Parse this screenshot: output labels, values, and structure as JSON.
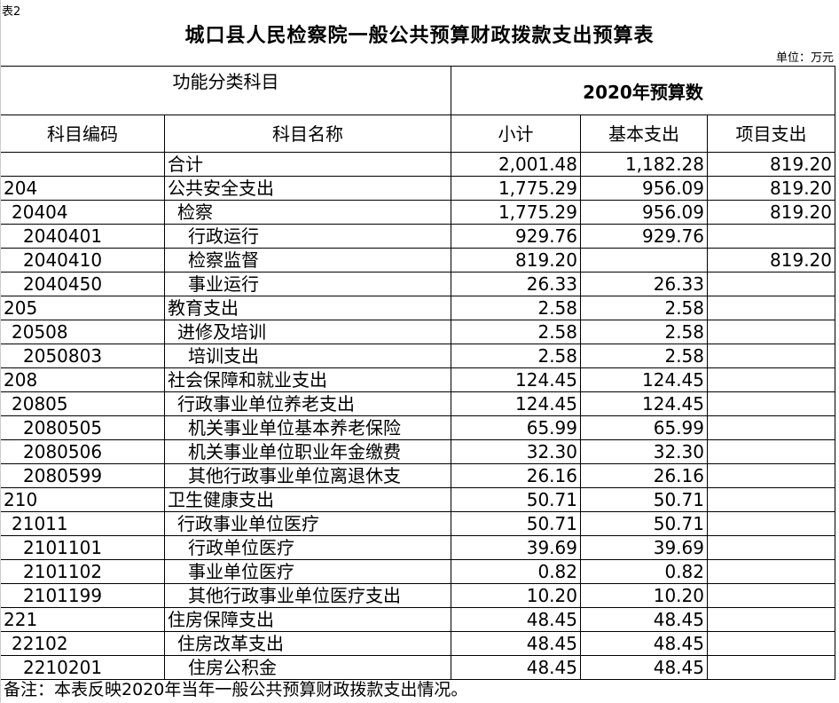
{
  "tag": "表2",
  "title": "城口县人民检察院一般公共预算财政拨款支出预算表",
  "unit": "单位：万元",
  "header": {
    "group_left": "功能分类科目",
    "group_right": "2020年预算数",
    "code": "科目编码",
    "name": "科目名称",
    "subtotal": "小计",
    "basic": "基本支出",
    "project": "项目支出"
  },
  "rows": [
    {
      "code": "",
      "name": "合计",
      "subtotal": "2,001.48",
      "basic": "1,182.28",
      "project": "819.20",
      "level": 0
    },
    {
      "code": "204",
      "name": "公共安全支出",
      "subtotal": "1,775.29",
      "basic": "956.09",
      "project": "819.20",
      "level": 0
    },
    {
      "code": "20404",
      "name": "检察",
      "subtotal": "1,775.29",
      "basic": "956.09",
      "project": "819.20",
      "level": 1
    },
    {
      "code": "2040401",
      "name": "行政运行",
      "subtotal": "929.76",
      "basic": "929.76",
      "project": "",
      "level": 2
    },
    {
      "code": "2040410",
      "name": "检察监督",
      "subtotal": "819.20",
      "basic": "",
      "project": "819.20",
      "level": 2
    },
    {
      "code": "2040450",
      "name": "事业运行",
      "subtotal": "26.33",
      "basic": "26.33",
      "project": "",
      "level": 2
    },
    {
      "code": "205",
      "name": "教育支出",
      "subtotal": "2.58",
      "basic": "2.58",
      "project": "",
      "level": 0
    },
    {
      "code": "20508",
      "name": "进修及培训",
      "subtotal": "2.58",
      "basic": "2.58",
      "project": "",
      "level": 1
    },
    {
      "code": "2050803",
      "name": "培训支出",
      "subtotal": "2.58",
      "basic": "2.58",
      "project": "",
      "level": 2
    },
    {
      "code": "208",
      "name": "社会保障和就业支出",
      "subtotal": "124.45",
      "basic": "124.45",
      "project": "",
      "level": 0
    },
    {
      "code": "20805",
      "name": "行政事业单位养老支出",
      "subtotal": "124.45",
      "basic": "124.45",
      "project": "",
      "level": 1
    },
    {
      "code": "2080505",
      "name": "机关事业单位基本养老保险",
      "subtotal": "65.99",
      "basic": "65.99",
      "project": "",
      "level": 2
    },
    {
      "code": "2080506",
      "name": "机关事业单位职业年金缴费",
      "subtotal": "32.30",
      "basic": "32.30",
      "project": "",
      "level": 2
    },
    {
      "code": "2080599",
      "name": "其他行政事业单位离退休支",
      "subtotal": "26.16",
      "basic": "26.16",
      "project": "",
      "level": 2
    },
    {
      "code": "210",
      "name": "卫生健康支出",
      "subtotal": "50.71",
      "basic": "50.71",
      "project": "",
      "level": 0
    },
    {
      "code": "21011",
      "name": "行政事业单位医疗",
      "subtotal": "50.71",
      "basic": "50.71",
      "project": "",
      "level": 1
    },
    {
      "code": "2101101",
      "name": "行政单位医疗",
      "subtotal": "39.69",
      "basic": "39.69",
      "project": "",
      "level": 2
    },
    {
      "code": "2101102",
      "name": "事业单位医疗",
      "subtotal": "0.82",
      "basic": "0.82",
      "project": "",
      "level": 2
    },
    {
      "code": "2101199",
      "name": "其他行政事业单位医疗支出",
      "subtotal": "10.20",
      "basic": "10.20",
      "project": "",
      "level": 2
    },
    {
      "code": "221",
      "name": "住房保障支出",
      "subtotal": "48.45",
      "basic": "48.45",
      "project": "",
      "level": 0
    },
    {
      "code": "22102",
      "name": "住房改革支出",
      "subtotal": "48.45",
      "basic": "48.45",
      "project": "",
      "level": 1
    },
    {
      "code": "2210201",
      "name": "住房公积金",
      "subtotal": "48.45",
      "basic": "48.45",
      "project": "",
      "level": 2
    }
  ],
  "note": "备注：本表反映2020年当年一般公共预算财政拨款支出情况。"
}
